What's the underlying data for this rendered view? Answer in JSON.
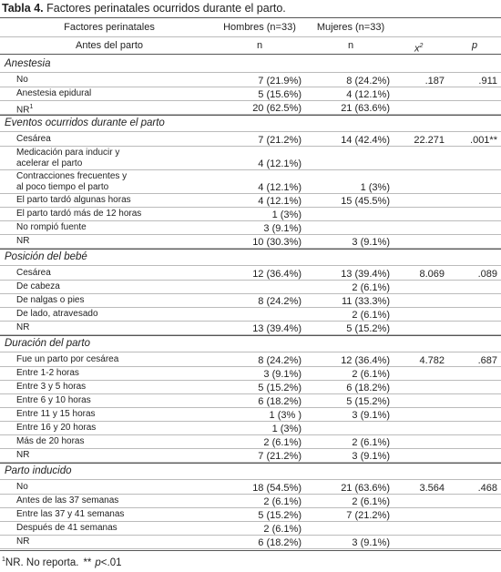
{
  "title": {
    "label": "Tabla 4.",
    "text": "Factores perinatales ocurridos durante el parto."
  },
  "header": {
    "row1": [
      "Factores perinatales",
      "Hombres (n=33)",
      "Mujeres (n=33)"
    ],
    "row2": {
      "label": "Antes del parto",
      "hombres": "n",
      "mujeres": "n",
      "x2": {
        "base": "x",
        "sup": "2"
      },
      "p": "p"
    }
  },
  "sections": [
    {
      "title": "Anestesia",
      "rows": [
        {
          "label": [
            "No"
          ],
          "hombres": "7 (21.9%)",
          "mujeres": "8 (24.2%)",
          "x2": ".187",
          "p": ".911"
        },
        {
          "label": [
            "Anestesia epidural"
          ],
          "hombres": "5 (15.6%)",
          "mujeres": "4 (12.1%)"
        },
        {
          "label": [
            "NR"
          ],
          "sup": "1",
          "hombres": "20 (62.5%)",
          "mujeres": "21 (63.6%)"
        }
      ]
    },
    {
      "title": "Eventos ocurridos durante el parto",
      "rows": [
        {
          "label": [
            "Cesárea"
          ],
          "hombres": "7 (21.2%)",
          "mujeres": "14 (42.4%)",
          "x2": "22.271",
          "p": ".001**"
        },
        {
          "label": [
            "Medicación para inducir y",
            "acelerar el parto"
          ],
          "hombres": "4 (12.1%)"
        },
        {
          "label": [
            "Contracciones frecuentes y",
            "al poco tiempo el parto"
          ],
          "hombres": "4 (12.1%)",
          "mujeres": "1 (3%)"
        },
        {
          "label": [
            "El parto tardó algunas horas"
          ],
          "hombres": "4 (12.1%)",
          "mujeres": "15 (45.5%)"
        },
        {
          "label": [
            "El parto tardó más de 12 horas"
          ],
          "hombres": "1 (3%)"
        },
        {
          "label": [
            "No rompió fuente"
          ],
          "hombres": "3 (9.1%)"
        },
        {
          "label": [
            "NR"
          ],
          "hombres": "10 (30.3%)",
          "mujeres": "3 (9.1%)"
        }
      ]
    },
    {
      "title": "Posición del bebé",
      "rows": [
        {
          "label": [
            "Cesárea"
          ],
          "hombres": "12 (36.4%)",
          "mujeres": "13 (39.4%)",
          "x2": "8.069",
          "p": ".089"
        },
        {
          "label": [
            "De cabeza"
          ],
          "mujeres": "2 (6.1%)"
        },
        {
          "label": [
            "De nalgas o pies"
          ],
          "hombres": "8 (24.2%)",
          "mujeres": "11 (33.3%)"
        },
        {
          "label": [
            "De lado, atravesado"
          ],
          "mujeres": "2 (6.1%)"
        },
        {
          "label": [
            "NR"
          ],
          "hombres": "13 (39.4%)",
          "mujeres": "5 (15.2%)"
        }
      ]
    },
    {
      "title": "Duración del parto",
      "rows": [
        {
          "label": [
            "Fue un parto por cesárea"
          ],
          "hombres": "8 (24.2%)",
          "mujeres": "12 (36.4%)",
          "x2": "4.782",
          "p": ".687"
        },
        {
          "label": [
            "Entre 1-2 horas"
          ],
          "hombres": "3 (9.1%)",
          "mujeres": "2 (6.1%)"
        },
        {
          "label": [
            "Entre 3 y 5 horas"
          ],
          "hombres": "5 (15.2%)",
          "mujeres": "6 (18.2%)"
        },
        {
          "label": [
            "Entre 6 y 10 horas"
          ],
          "hombres": "6 (18.2%)",
          "mujeres": "5 (15.2%)"
        },
        {
          "label": [
            "Entre 11 y 15 horas"
          ],
          "hombres": "1 (3% )",
          "mujeres": "3 (9.1%)"
        },
        {
          "label": [
            "Entre 16 y 20 horas"
          ],
          "hombres": "1 (3%)"
        },
        {
          "label": [
            "Más de 20 horas"
          ],
          "hombres": "2 (6.1%)",
          "mujeres": "2 (6.1%)"
        },
        {
          "label": [
            "NR"
          ],
          "hombres": "7 (21.2%)",
          "mujeres": "3 (9.1%)"
        }
      ]
    },
    {
      "title": "Parto inducido",
      "rows": [
        {
          "label": [
            "No"
          ],
          "hombres": "18 (54.5%)",
          "mujeres": "21 (63.6%)",
          "x2": "3.564",
          "p": ".468"
        },
        {
          "label": [
            "Antes de las 37 semanas"
          ],
          "hombres": "2 (6.1%)",
          "mujeres": "2 (6.1%)"
        },
        {
          "label": [
            "Entre las 37 y 41 semanas"
          ],
          "hombres": "5 (15.2%)",
          "mujeres": "7 (21.2%)"
        },
        {
          "label": [
            "Después de 41 semanas"
          ],
          "hombres": "2 (6.1%)"
        },
        {
          "label": [
            "NR"
          ],
          "hombres": "6 (18.2%)",
          "mujeres": "3 (9.1%)"
        }
      ]
    }
  ],
  "footnote": {
    "sup": "1",
    "text": "NR. No reporta.",
    "stars": "**",
    "p": "p",
    "rest": "<.01"
  }
}
